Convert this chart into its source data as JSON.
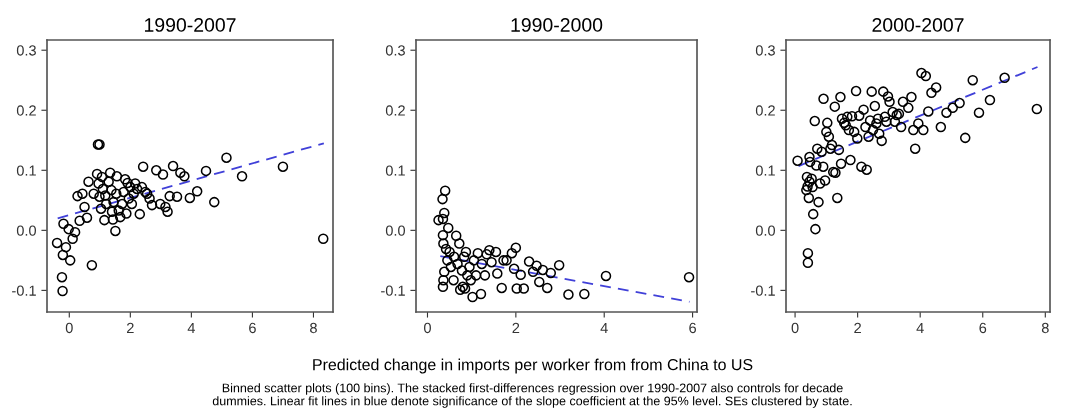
{
  "chart_data": [
    {
      "type": "scatter",
      "title": "1990-2007",
      "marker": "circle",
      "grid": false,
      "xlim": [
        -0.73,
        8.64
      ],
      "ylim": [
        -0.136,
        0.317
      ],
      "xticks": [
        0,
        2,
        4,
        6,
        8
      ],
      "yticks": [
        {
          "value": -0.1,
          "label": "-0.1"
        },
        {
          "value": 0,
          "label": "0.0"
        },
        {
          "value": 0.1,
          "label": "0.1"
        },
        {
          "value": 0.2,
          "label": "0.2"
        },
        {
          "value": 0.3,
          "label": "0.3"
        }
      ],
      "series": [
        {
          "color": "#000000",
          "x": [
            -0.4,
            -0.24,
            -0.22,
            -0.21,
            -0.19,
            -0.11,
            -0.02,
            0.03,
            0.11,
            0.19,
            0.27,
            0.34,
            0.43,
            0.5,
            0.58,
            0.63,
            0.74,
            0.8,
            0.94,
            0.99,
            0.91,
            0.96,
            0.99,
            1.04,
            1.07,
            1.1,
            1.15,
            1.18,
            1.21,
            1.29,
            1.34,
            1.38,
            1.4,
            1.43,
            1.45,
            1.51,
            1.54,
            1.56,
            1.62,
            1.67,
            1.73,
            1.78,
            1.83,
            1.87,
            1.91,
            1.95,
            2.0,
            2.05,
            2.11,
            2.16,
            2.22,
            2.31,
            2.38,
            2.42,
            2.49,
            2.55,
            2.63,
            2.71,
            2.85,
            2.98,
            3.07,
            3.15,
            3.22,
            3.29,
            3.4,
            3.53,
            3.64,
            3.77,
            3.95,
            4.19,
            4.48,
            4.75,
            5.15,
            5.66,
            7.0,
            8.32
          ],
          "values": [
            -0.021,
            -0.078,
            -0.101,
            -0.041,
            0.011,
            -0.028,
            0.002,
            -0.05,
            -0.014,
            -0.003,
            0.057,
            0.016,
            0.061,
            0.039,
            0.021,
            0.081,
            -0.058,
            0.061,
            0.143,
            0.143,
            0.094,
            0.078,
            0.056,
            0.036,
            0.089,
            0.069,
            0.017,
            0.058,
            0.044,
            0.081,
            0.096,
            0.067,
            0.031,
            0.018,
            0.047,
            -0.001,
            0.061,
            0.09,
            0.033,
            0.022,
            0.044,
            0.064,
            0.085,
            0.028,
            0.079,
            0.053,
            0.072,
            0.044,
            0.061,
            0.078,
            0.069,
            0.027,
            0.072,
            0.106,
            0.064,
            0.061,
            0.053,
            0.042,
            0.1,
            0.044,
            0.093,
            0.039,
            0.031,
            0.057,
            0.107,
            0.056,
            0.096,
            0.09,
            0.054,
            0.065,
            0.099,
            0.047,
            0.121,
            0.09,
            0.106,
            -0.014
          ]
        },
        {
          "type": "line",
          "color": "#4040d8",
          "line_style": "dashed",
          "marker": "none",
          "x": [
            -0.38,
            8.34
          ],
          "values": [
            0.02,
            0.145
          ]
        }
      ]
    },
    {
      "type": "scatter",
      "title": "1990-2000",
      "marker": "circle",
      "grid": false,
      "xlabel": "Predicted change in imports per worker from from China to US",
      "annotations": [
        "Binned scatter plots (100 bins). The stacked first-differences regression over 1990-2007 also controls for decade",
        "dummies. Linear fit lines in blue denote significance of the slope coefficient at the 95% level. SEs clustered by state."
      ],
      "xlim": [
        -0.26,
        6.1
      ],
      "ylim": [
        -0.136,
        0.317
      ],
      "xticks": [
        0,
        2,
        4,
        6
      ],
      "yticks": [
        {
          "value": -0.1,
          "label": "-0.1"
        },
        {
          "value": 0,
          "label": "0.0"
        },
        {
          "value": 0.1,
          "label": "0.1"
        },
        {
          "value": 0.2,
          "label": "0.2"
        },
        {
          "value": 0.3,
          "label": "0.3"
        }
      ],
      "series": [
        {
          "color": "#000000",
          "x": [
            0.25,
            0.34,
            0.4,
            0.38,
            0.35,
            0.47,
            0.35,
            0.36,
            0.35,
            0.36,
            0.38,
            0.42,
            0.45,
            0.5,
            0.53,
            0.59,
            0.6,
            0.65,
            0.68,
            0.72,
            0.74,
            0.78,
            0.8,
            0.83,
            0.85,
            0.87,
            0.9,
            0.95,
            0.98,
            1.02,
            1.05,
            1.1,
            1.14,
            1.21,
            1.23,
            1.3,
            1.34,
            1.4,
            1.45,
            1.55,
            1.58,
            1.68,
            1.72,
            1.79,
            1.91,
            1.96,
            2.0,
            2.02,
            2.11,
            2.18,
            2.3,
            2.39,
            2.47,
            2.53,
            2.61,
            2.71,
            2.79,
            2.98,
            3.19,
            3.55,
            4.04,
            5.92
          ],
          "values": [
            0.017,
            0.052,
            0.066,
            0.029,
            0.019,
            0.004,
            -0.008,
            -0.022,
            -0.094,
            -0.083,
            -0.069,
            -0.031,
            -0.05,
            -0.036,
            -0.061,
            -0.083,
            -0.044,
            -0.009,
            -0.056,
            -0.022,
            -0.099,
            -0.067,
            -0.094,
            -0.044,
            -0.097,
            -0.036,
            -0.075,
            -0.061,
            -0.083,
            -0.111,
            -0.05,
            -0.075,
            -0.038,
            -0.106,
            -0.056,
            -0.075,
            -0.04,
            -0.033,
            -0.053,
            -0.036,
            -0.072,
            -0.096,
            -0.05,
            -0.05,
            -0.038,
            -0.064,
            -0.029,
            -0.097,
            -0.074,
            -0.097,
            -0.052,
            -0.069,
            -0.059,
            -0.086,
            -0.066,
            -0.096,
            -0.071,
            -0.058,
            -0.107,
            -0.106,
            -0.076,
            -0.078
          ]
        },
        {
          "type": "line",
          "color": "#4040d8",
          "line_style": "dashed",
          "marker": "none",
          "x": [
            0.29,
            5.93
          ],
          "values": [
            -0.043,
            -0.119
          ]
        }
      ]
    },
    {
      "type": "scatter",
      "title": "2000-2007",
      "marker": "circle",
      "grid": false,
      "xlim": [
        -0.29,
        8.15
      ],
      "ylim": [
        -0.136,
        0.317
      ],
      "xticks": [
        0,
        2,
        4,
        6,
        8
      ],
      "yticks": [
        {
          "value": -0.1,
          "label": "-0.1"
        },
        {
          "value": 0,
          "label": "0.0"
        },
        {
          "value": 0.1,
          "label": "0.1"
        },
        {
          "value": 0.2,
          "label": "0.2"
        },
        {
          "value": 0.3,
          "label": "0.3"
        }
      ],
      "series": [
        {
          "color": "#000000",
          "x": [
            0.08,
            0.38,
            0.36,
            0.4,
            0.46,
            0.44,
            0.41,
            0.41,
            0.46,
            0.48,
            0.53,
            0.56,
            0.58,
            0.63,
            0.65,
            0.68,
            0.71,
            0.75,
            0.8,
            0.85,
            0.9,
            0.91,
            0.96,
            1.0,
            1.03,
            1.08,
            1.13,
            1.18,
            1.22,
            1.27,
            1.29,
            1.35,
            1.4,
            1.45,
            1.47,
            1.5,
            1.57,
            1.62,
            1.67,
            1.72,
            1.77,
            1.82,
            1.89,
            1.95,
            1.99,
            2.05,
            2.12,
            2.19,
            2.25,
            2.29,
            2.35,
            2.4,
            2.45,
            2.49,
            2.55,
            2.6,
            2.65,
            2.69,
            2.77,
            2.82,
            2.87,
            2.92,
            2.97,
            3.02,
            3.12,
            3.19,
            3.25,
            3.32,
            3.39,
            3.45,
            3.62,
            3.72,
            3.78,
            3.84,
            3.94,
            4.04,
            4.1,
            4.18,
            4.26,
            4.36,
            4.51,
            4.66,
            4.84,
            5.04,
            5.26,
            5.44,
            5.68,
            5.88,
            6.23,
            6.7,
            7.73
          ],
          "values": [
            0.116,
            0.089,
            0.067,
            0.073,
            0.081,
            0.054,
            -0.038,
            -0.054,
            0.122,
            0.114,
            0.086,
            0.072,
            0.027,
            0.182,
            0.002,
            0.108,
            0.136,
            0.047,
            0.078,
            0.131,
            0.106,
            0.219,
            0.083,
            0.164,
            0.179,
            0.156,
            0.136,
            0.142,
            0.097,
            0.206,
            0.096,
            0.054,
            0.134,
            0.222,
            0.111,
            0.186,
            0.179,
            0.175,
            0.189,
            0.167,
            0.117,
            0.19,
            0.164,
            0.232,
            0.153,
            0.191,
            0.106,
            0.201,
            0.172,
            0.101,
            0.156,
            0.183,
            0.231,
            0.167,
            0.207,
            0.178,
            0.186,
            0.161,
            0.149,
            0.231,
            0.189,
            0.181,
            0.223,
            0.214,
            0.197,
            0.181,
            0.192,
            0.194,
            0.172,
            0.214,
            0.204,
            0.222,
            0.167,
            0.136,
            0.178,
            0.262,
            0.167,
            0.257,
            0.198,
            0.229,
            0.238,
            0.172,
            0.196,
            0.204,
            0.212,
            0.154,
            0.25,
            0.196,
            0.217,
            0.254,
            0.202
          ]
        },
        {
          "type": "line",
          "color": "#4040d8",
          "line_style": "dashed",
          "marker": "none",
          "x": [
            0.11,
            7.75
          ],
          "values": [
            0.107,
            0.272
          ]
        }
      ]
    }
  ]
}
